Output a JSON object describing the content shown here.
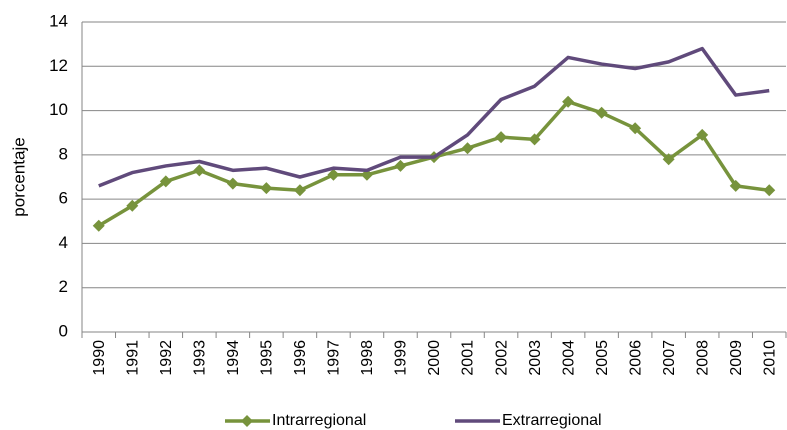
{
  "chart_data": {
    "type": "line",
    "y_label": "porcentaje",
    "categories": [
      "1990",
      "1991",
      "1992",
      "1993",
      "1994",
      "1995",
      "1996",
      "1997",
      "1998",
      "1999",
      "2000",
      "2001",
      "2002",
      "2003",
      "2004",
      "2005",
      "2006",
      "2007",
      "2008",
      "2009",
      "2010"
    ],
    "series": [
      {
        "name": "Intrarregional",
        "color": "#77933c",
        "marker": "diamond",
        "values": [
          4.8,
          5.7,
          6.8,
          7.3,
          6.7,
          6.5,
          6.4,
          7.1,
          7.1,
          7.5,
          7.9,
          8.3,
          8.8,
          8.7,
          10.4,
          9.9,
          9.2,
          7.8,
          8.9,
          6.6,
          6.4
        ]
      },
      {
        "name": "Extrarregional",
        "color": "#604a7b",
        "marker": "none",
        "values": [
          6.6,
          7.2,
          7.5,
          7.7,
          7.3,
          7.4,
          7.0,
          7.4,
          7.3,
          7.9,
          7.9,
          8.9,
          10.5,
          11.1,
          12.4,
          12.1,
          11.9,
          12.2,
          12.8,
          10.7,
          10.9
        ]
      }
    ],
    "ylim": [
      0,
      14
    ],
    "yticks": [
      0,
      2,
      4,
      6,
      8,
      10,
      12,
      14
    ],
    "grid": true,
    "legend": "bottom"
  }
}
